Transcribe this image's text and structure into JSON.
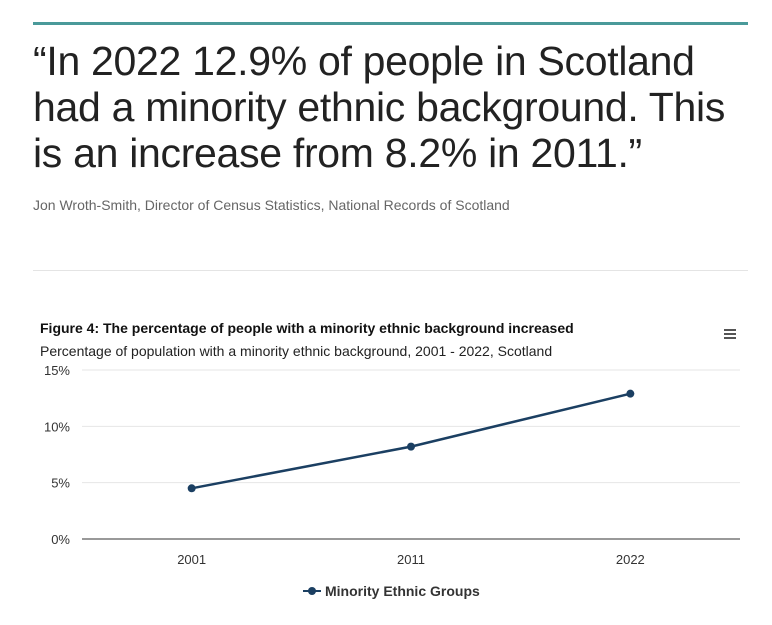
{
  "quote": {
    "text": "“In 2022 12.9% of people in Scotland had a minority ethnic background. This is an increase from 8.2% in 2011.”",
    "attribution": "Jon Wroth-Smith, Director of Census Statistics, National Records of Scotland"
  },
  "colors": {
    "accent": "#4a9a9a",
    "series": "#1b3f62"
  },
  "chart_data": {
    "type": "line",
    "title": "Figure 4: The percentage of people with a minority ethnic background increased",
    "subtitle": "Percentage of population with a minority ethnic background, 2001 - 2022, Scotland",
    "categories": [
      "2001",
      "2011",
      "2022"
    ],
    "series": [
      {
        "name": "Minority Ethnic Groups",
        "values": [
          4.5,
          8.2,
          12.9
        ]
      }
    ],
    "y_ticks": [
      {
        "value": 0,
        "label": "0%"
      },
      {
        "value": 5,
        "label": "5%"
      },
      {
        "value": 10,
        "label": "10%"
      },
      {
        "value": 15,
        "label": "15%"
      }
    ],
    "ylim": [
      0,
      15
    ],
    "xlabel": "",
    "ylabel": "",
    "grid": true,
    "legend_position": "bottom-center"
  }
}
